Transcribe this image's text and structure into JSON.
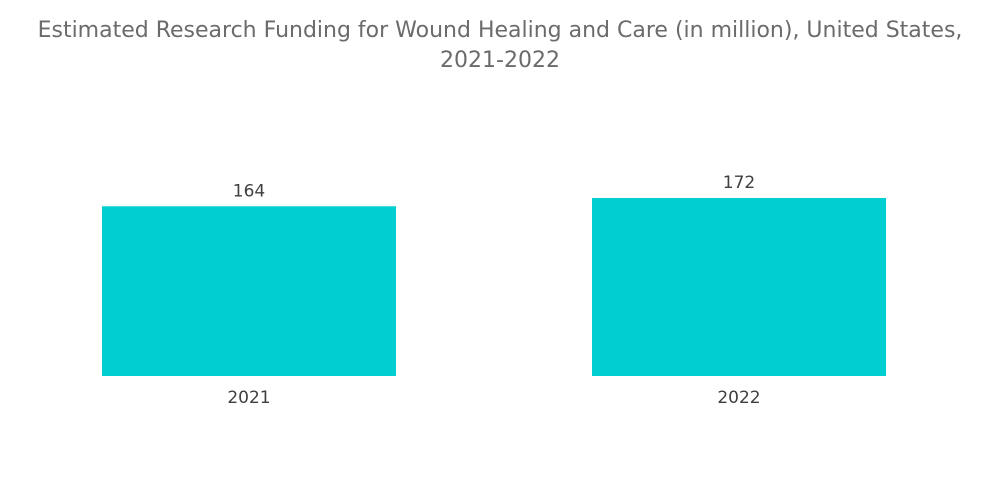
{
  "chart_data": {
    "type": "bar",
    "title_line1": "Estimated Research Funding for Wound Healing and Care (in million), United States,",
    "title_line2": "2021-2022",
    "categories": [
      "2021",
      "2022"
    ],
    "values": [
      164,
      172
    ],
    "xlabel": "",
    "ylabel": "",
    "ylim": [
      0,
      172
    ],
    "grid": false,
    "legend": "none",
    "bar_color": "#00CED1"
  }
}
